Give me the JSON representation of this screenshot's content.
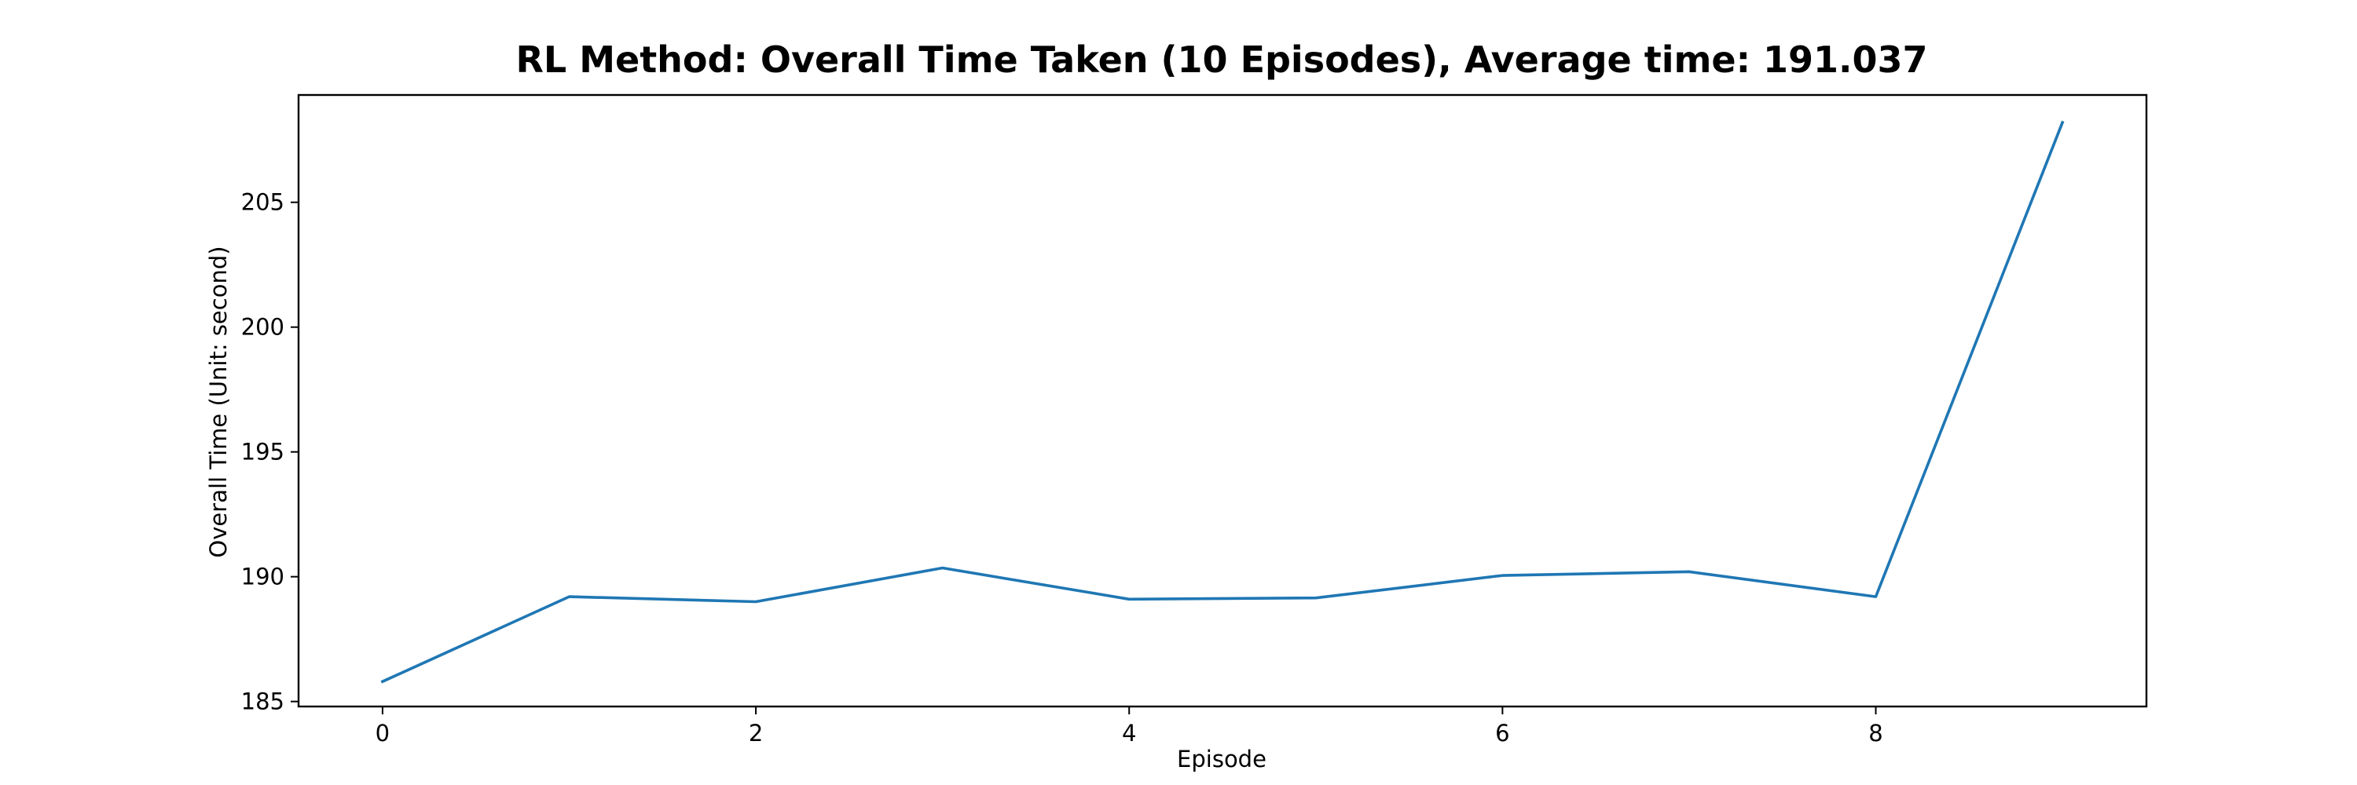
{
  "chart_data": {
    "type": "line",
    "title": "RL Method: Overall Time Taken (10 Episodes), Average time: 191.037",
    "xlabel": "Episode",
    "ylabel": "Overall Time (Unit: second)",
    "x": [
      0,
      1,
      2,
      3,
      4,
      5,
      6,
      7,
      8,
      9
    ],
    "series": [
      {
        "values": [
          185.8,
          189.2,
          189.0,
          190.35,
          189.1,
          189.15,
          190.05,
          190.2,
          189.2,
          208.2
        ],
        "color": "#1f77b4"
      }
    ],
    "xlim": [
      -0.45,
      9.45
    ],
    "ylim": [
      184.8,
      209.3
    ],
    "xticks": [
      0,
      2,
      4,
      6,
      8
    ],
    "yticks": [
      185,
      190,
      195,
      200,
      205
    ],
    "grid": false,
    "legend": "none"
  }
}
